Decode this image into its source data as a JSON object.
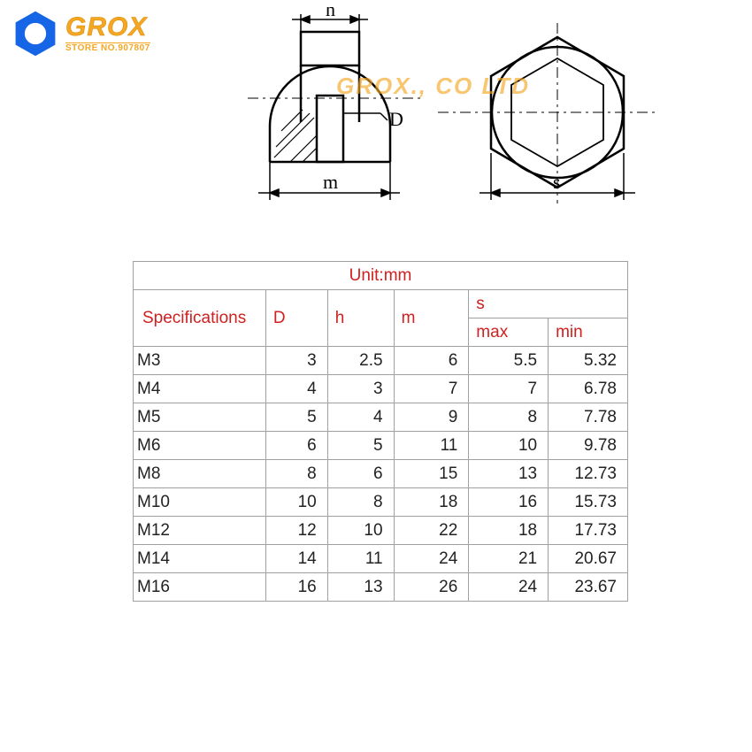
{
  "logo": {
    "brand": "GROX",
    "store": "STORE NO.907807",
    "hex_fill": "#1565e6",
    "hex_inner": "#ffffff",
    "text_color": "#f5a623"
  },
  "watermark": "GROX., CO LTD",
  "diagram": {
    "labels": {
      "h": "h",
      "D": "D",
      "m": "m",
      "s": "s"
    },
    "stroke": "#000000",
    "hatch": "#000000",
    "label_color": "#000000",
    "label_fontsize": 22
  },
  "table": {
    "unit_label": "Unit:mm",
    "headers": {
      "spec": "Specifications",
      "D": "D",
      "h": "h",
      "m": "m",
      "s": "s",
      "smax": "max",
      "smin": "min"
    },
    "header_color": "#d02020",
    "border_color": "#a0a0a0",
    "cell_color": "#222222",
    "fontsize": 19,
    "rows": [
      {
        "spec": "M3",
        "D": "3",
        "h": "2.5",
        "m": "6",
        "smax": "5.5",
        "smin": "5.32"
      },
      {
        "spec": "M4",
        "D": "4",
        "h": "3",
        "m": "7",
        "smax": "7",
        "smin": "6.78"
      },
      {
        "spec": "M5",
        "D": "5",
        "h": "4",
        "m": "9",
        "smax": "8",
        "smin": "7.78"
      },
      {
        "spec": "M6",
        "D": "6",
        "h": "5",
        "m": "11",
        "smax": "10",
        "smin": "9.78"
      },
      {
        "spec": "M8",
        "D": "8",
        "h": "6",
        "m": "15",
        "smax": "13",
        "smin": "12.73"
      },
      {
        "spec": "M10",
        "D": "10",
        "h": "8",
        "m": "18",
        "smax": "16",
        "smin": "15.73"
      },
      {
        "spec": "M12",
        "D": "12",
        "h": "10",
        "m": "22",
        "smax": "18",
        "smin": "17.73"
      },
      {
        "spec": "M14",
        "D": "14",
        "h": "11",
        "m": "24",
        "smax": "21",
        "smin": "20.67"
      },
      {
        "spec": "M16",
        "D": "16",
        "h": "13",
        "m": "26",
        "smax": "24",
        "smin": "23.67"
      }
    ]
  }
}
